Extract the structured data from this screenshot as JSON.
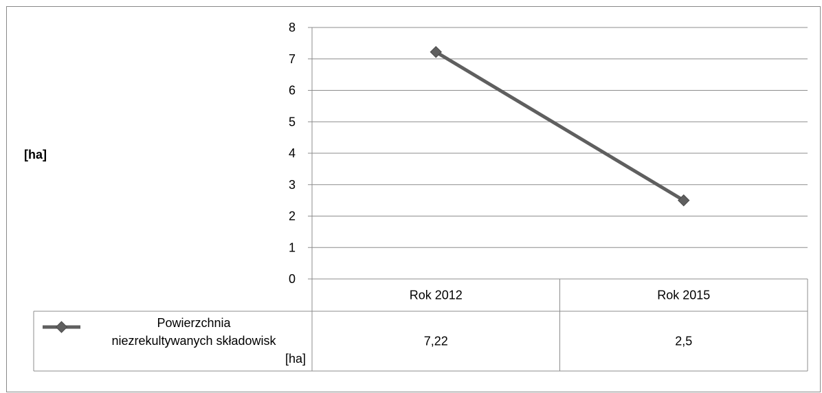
{
  "chart_data": {
    "type": "line",
    "title": "",
    "xlabel": "",
    "ylabel": "[ha]",
    "categories": [
      "Rok 2012",
      "Rok 2015"
    ],
    "ylim": [
      0,
      8
    ],
    "yticks": [
      0,
      1,
      2,
      3,
      4,
      5,
      6,
      7,
      8
    ],
    "grid": true,
    "legend": "data-table-left",
    "series": [
      {
        "name_lines": [
          "Powierzchnia",
          "niezrekultywanych składowisk",
          "[ha]"
        ],
        "values": [
          7.22,
          2.5
        ],
        "value_labels": [
          "7,22",
          "2,5"
        ],
        "color": "#5f5f5f",
        "marker": "diamond"
      }
    ]
  }
}
